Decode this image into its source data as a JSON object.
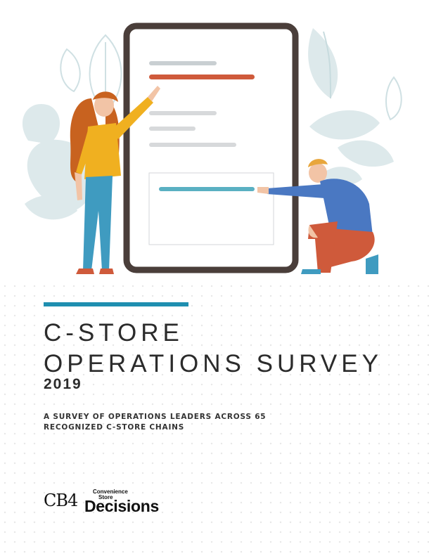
{
  "cover": {
    "title_line1": "C-STORE",
    "title_line2": "OPERATIONS SURVEY",
    "year": "2019",
    "subtitle_line1": "A SURVEY OF OPERATIONS LEADERS ACROSS 65",
    "subtitle_line2": "RECOGNIZED C-STORE CHAINS"
  },
  "logo": {
    "cb4": "CB4",
    "brand_small_1": "Convenience",
    "brand_small_2": "Store",
    "brand_big": "Decisions"
  },
  "colors": {
    "accent_bar": "#1f8fb0",
    "leaf": "#dbe8ea",
    "tablet_frame": "#4a3e3a",
    "line_red": "#cf5a3b",
    "line_teal": "#5ab0c2"
  }
}
